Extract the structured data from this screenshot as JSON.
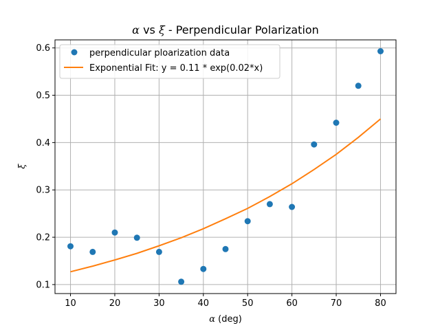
{
  "chart_data": {
    "type": "scatter",
    "title_symbol_x": "α",
    "title_mid": " vs ",
    "title_symbol_y": "ξ",
    "title_rest": " - Perpendicular Polarization",
    "xlabel_symbol": "α",
    "xlabel_rest": " (deg)",
    "ylabel_symbol": "ξ",
    "xlim": [
      6.5,
      83.5
    ],
    "ylim": [
      0.081,
      0.617
    ],
    "xticks": [
      10,
      20,
      30,
      40,
      50,
      60,
      70,
      80
    ],
    "yticks": [
      0.1,
      0.2,
      0.3,
      0.4,
      0.5,
      0.6
    ],
    "grid": true,
    "legend_position": "upper-left",
    "series": [
      {
        "name": "perpendicular ploarization data",
        "kind": "points",
        "color": "#1f77b4",
        "x": [
          10,
          15,
          20,
          25,
          30,
          35,
          40,
          45,
          50,
          55,
          60,
          65,
          70,
          75,
          80
        ],
        "y": [
          0.181,
          0.169,
          0.21,
          0.199,
          0.169,
          0.106,
          0.133,
          0.175,
          0.234,
          0.27,
          0.264,
          0.396,
          0.442,
          0.52,
          0.593
        ]
      },
      {
        "name": "Exponential Fit: y = 0.11 * exp(0.02*x)",
        "kind": "line",
        "color": "#ff7f0e",
        "x": [
          10,
          15,
          20,
          25,
          30,
          35,
          40,
          45,
          50,
          55,
          60,
          65,
          70,
          75,
          80
        ],
        "y": [
          0.127,
          0.139,
          0.152,
          0.166,
          0.182,
          0.199,
          0.218,
          0.239,
          0.261,
          0.286,
          0.313,
          0.343,
          0.375,
          0.411,
          0.45
        ]
      }
    ]
  }
}
